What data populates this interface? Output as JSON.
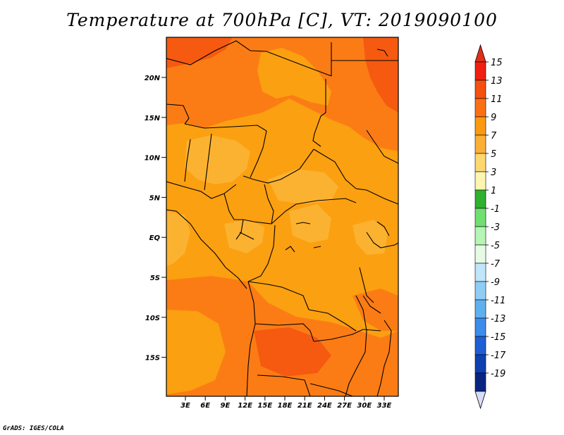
{
  "title": "Temperature at 700hPa [C], VT: 2019090100",
  "credit": "GrADS: IGES/COLA",
  "map": {
    "lat_labels": [
      "20N",
      "15N",
      "10N",
      "5N",
      "EQ",
      "5S",
      "10S",
      "15S"
    ],
    "lon_labels": [
      "3E",
      "6E",
      "9E",
      "12E",
      "15E",
      "18E",
      "21E",
      "24E",
      "27E",
      "30E",
      "33E"
    ]
  },
  "colorbar": {
    "labels": [
      "15",
      "13",
      "11",
      "9",
      "7",
      "5",
      "3",
      "1",
      "-1",
      "-3",
      "-5",
      "-7",
      "-9",
      "-11",
      "-13",
      "-15",
      "-17",
      "-19"
    ],
    "colors": [
      "#f02010",
      "#f55010",
      "#fb7015",
      "#fb9a10",
      "#fbb035",
      "#fdd870",
      "#fdf5b0",
      "#2fb02f",
      "#6fe06f",
      "#b5f5b5",
      "#e5fbe5",
      "#bfe6fb",
      "#8fcdf5",
      "#5fb0f0",
      "#3c8cea",
      "#1e5fd5",
      "#1040b0",
      "#082680"
    ],
    "arrow_top_color": "#e0301a",
    "arrow_bottom_color": "#d8dcfb"
  },
  "colors": {
    "field_base": "#fba010",
    "field_warm": "#fb7c15",
    "field_hot": "#f55a10",
    "field_cool": "#fbb230",
    "border": "#000000"
  }
}
